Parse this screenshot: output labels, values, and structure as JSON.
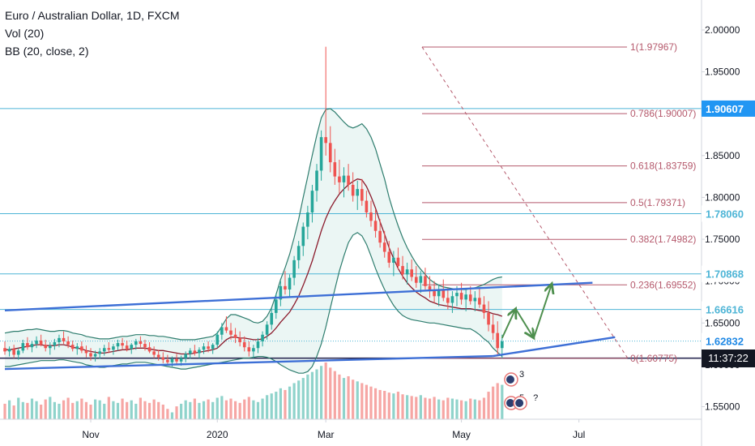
{
  "legend": {
    "symbol": "Euro / Australian Dollar, 1D, FXCM",
    "volume": "Vol (20)",
    "bands": "BB (20, close, 2)"
  },
  "clock": "11:37:22",
  "colors": {
    "up": "#26a69a",
    "down": "#ef5350",
    "band": "#2e7d6e",
    "basis": "#8b1a2b",
    "fib": "#b5596c",
    "hline": "#4eb5d6",
    "trend": "#3d6fd6",
    "arrow": "#4e8f4e",
    "price_tag": "#2196f3",
    "current_tag": "#1e88e5"
  },
  "chart_data": {
    "type": "candlestick",
    "symbol": "Euro / Australian Dollar",
    "interval": "1D",
    "source": "FXCM",
    "indicators": [
      "Vol (20)",
      "BB (20, close, 2)"
    ],
    "x_tick_labels": [
      "Nov",
      "2020",
      "Mar",
      "May",
      "Jul"
    ],
    "y_tick_labels": [
      "2.00000",
      "1.95000",
      "1.90000",
      "1.85000",
      "1.80000",
      "1.75000",
      "1.70000",
      "1.65000",
      "1.60000",
      "1.55000"
    ],
    "y_ticks": [
      2.0,
      1.95,
      1.9,
      1.85,
      1.8,
      1.75,
      1.7,
      1.65,
      1.6,
      1.55
    ],
    "ylim": [
      1.535,
      2.03
    ],
    "candles": [
      [
        1.62,
        1.628,
        1.612,
        1.616
      ],
      [
        1.616,
        1.622,
        1.61,
        1.619
      ],
      [
        1.619,
        1.624,
        1.608,
        1.612
      ],
      [
        1.612,
        1.62,
        1.606,
        1.617
      ],
      [
        1.617,
        1.63,
        1.614,
        1.626
      ],
      [
        1.626,
        1.633,
        1.618,
        1.621
      ],
      [
        1.621,
        1.628,
        1.615,
        1.625
      ],
      [
        1.625,
        1.634,
        1.62,
        1.629
      ],
      [
        1.629,
        1.636,
        1.622,
        1.624
      ],
      [
        1.624,
        1.63,
        1.616,
        1.62
      ],
      [
        1.62,
        1.627,
        1.612,
        1.623
      ],
      [
        1.623,
        1.631,
        1.618,
        1.627
      ],
      [
        1.627,
        1.636,
        1.621,
        1.632
      ],
      [
        1.632,
        1.64,
        1.625,
        1.628
      ],
      [
        1.628,
        1.634,
        1.62,
        1.624
      ],
      [
        1.624,
        1.629,
        1.616,
        1.619
      ],
      [
        1.619,
        1.626,
        1.612,
        1.622
      ],
      [
        1.622,
        1.628,
        1.614,
        1.617
      ],
      [
        1.617,
        1.623,
        1.609,
        1.614
      ],
      [
        1.614,
        1.62,
        1.605,
        1.61
      ],
      [
        1.61,
        1.617,
        1.604,
        1.613
      ],
      [
        1.613,
        1.62,
        1.607,
        1.616
      ],
      [
        1.616,
        1.624,
        1.611,
        1.62
      ],
      [
        1.62,
        1.627,
        1.614,
        1.618
      ],
      [
        1.618,
        1.625,
        1.612,
        1.622
      ],
      [
        1.622,
        1.63,
        1.617,
        1.626
      ],
      [
        1.626,
        1.632,
        1.619,
        1.623
      ],
      [
        1.623,
        1.629,
        1.616,
        1.619
      ],
      [
        1.619,
        1.626,
        1.613,
        1.624
      ],
      [
        1.624,
        1.631,
        1.618,
        1.628
      ],
      [
        1.628,
        1.634,
        1.621,
        1.625
      ],
      [
        1.625,
        1.63,
        1.617,
        1.621
      ],
      [
        1.621,
        1.627,
        1.614,
        1.616
      ],
      [
        1.616,
        1.622,
        1.608,
        1.612
      ],
      [
        1.612,
        1.618,
        1.605,
        1.609
      ],
      [
        1.609,
        1.615,
        1.602,
        1.606
      ],
      [
        1.606,
        1.612,
        1.6,
        1.603
      ],
      [
        1.603,
        1.61,
        1.598,
        1.607
      ],
      [
        1.607,
        1.613,
        1.601,
        1.604
      ],
      [
        1.604,
        1.611,
        1.599,
        1.608
      ],
      [
        1.608,
        1.616,
        1.603,
        1.613
      ],
      [
        1.613,
        1.62,
        1.607,
        1.617
      ],
      [
        1.617,
        1.624,
        1.611,
        1.614
      ],
      [
        1.614,
        1.621,
        1.608,
        1.618
      ],
      [
        1.618,
        1.626,
        1.613,
        1.622
      ],
      [
        1.622,
        1.628,
        1.615,
        1.619
      ],
      [
        1.619,
        1.626,
        1.613,
        1.624
      ],
      [
        1.624,
        1.64,
        1.62,
        1.636
      ],
      [
        1.636,
        1.65,
        1.63,
        1.645
      ],
      [
        1.645,
        1.658,
        1.638,
        1.641
      ],
      [
        1.641,
        1.65,
        1.63,
        1.636
      ],
      [
        1.636,
        1.644,
        1.626,
        1.632
      ],
      [
        1.632,
        1.64,
        1.622,
        1.627
      ],
      [
        1.627,
        1.634,
        1.616,
        1.621
      ],
      [
        1.621,
        1.628,
        1.61,
        1.616
      ],
      [
        1.616,
        1.624,
        1.608,
        1.62
      ],
      [
        1.62,
        1.632,
        1.614,
        1.628
      ],
      [
        1.628,
        1.64,
        1.622,
        1.636
      ],
      [
        1.636,
        1.652,
        1.63,
        1.648
      ],
      [
        1.648,
        1.668,
        1.642,
        1.662
      ],
      [
        1.662,
        1.685,
        1.655,
        1.678
      ],
      [
        1.678,
        1.7,
        1.67,
        1.694
      ],
      [
        1.694,
        1.712,
        1.684,
        1.69
      ],
      [
        1.69,
        1.708,
        1.68,
        1.704
      ],
      [
        1.704,
        1.73,
        1.695,
        1.725
      ],
      [
        1.725,
        1.748,
        1.715,
        1.742
      ],
      [
        1.742,
        1.77,
        1.73,
        1.765
      ],
      [
        1.765,
        1.79,
        1.75,
        1.782
      ],
      [
        1.782,
        1.815,
        1.77,
        1.808
      ],
      [
        1.808,
        1.84,
        1.795,
        1.832
      ],
      [
        1.832,
        1.88,
        1.82,
        1.872
      ],
      [
        1.872,
        1.98,
        1.85,
        1.865
      ],
      [
        1.865,
        1.885,
        1.83,
        1.842
      ],
      [
        1.842,
        1.858,
        1.815,
        1.825
      ],
      [
        1.825,
        1.845,
        1.805,
        1.818
      ],
      [
        1.818,
        1.836,
        1.8,
        1.826
      ],
      [
        1.826,
        1.84,
        1.808,
        1.815
      ],
      [
        1.815,
        1.83,
        1.795,
        1.802
      ],
      [
        1.802,
        1.82,
        1.785,
        1.81
      ],
      [
        1.81,
        1.822,
        1.79,
        1.796
      ],
      [
        1.796,
        1.808,
        1.776,
        1.782
      ],
      [
        1.782,
        1.796,
        1.765,
        1.772
      ],
      [
        1.772,
        1.786,
        1.752,
        1.76
      ],
      [
        1.76,
        1.774,
        1.74,
        1.746
      ],
      [
        1.746,
        1.76,
        1.728,
        1.735
      ],
      [
        1.735,
        1.748,
        1.716,
        1.722
      ],
      [
        1.722,
        1.736,
        1.706,
        1.728
      ],
      [
        1.728,
        1.74,
        1.714,
        1.718
      ],
      [
        1.718,
        1.73,
        1.702,
        1.708
      ],
      [
        1.708,
        1.722,
        1.696,
        1.714
      ],
      [
        1.714,
        1.726,
        1.7,
        1.705
      ],
      [
        1.705,
        1.718,
        1.692,
        1.698
      ],
      [
        1.698,
        1.712,
        1.686,
        1.706
      ],
      [
        1.706,
        1.716,
        1.69,
        1.694
      ],
      [
        1.694,
        1.706,
        1.68,
        1.688
      ],
      [
        1.688,
        1.7,
        1.674,
        1.682
      ],
      [
        1.682,
        1.696,
        1.67,
        1.69
      ],
      [
        1.69,
        1.702,
        1.676,
        1.68
      ],
      [
        1.68,
        1.692,
        1.666,
        1.674
      ],
      [
        1.674,
        1.688,
        1.662,
        1.682
      ],
      [
        1.682,
        1.694,
        1.67,
        1.686
      ],
      [
        1.686,
        1.698,
        1.672,
        1.678
      ],
      [
        1.678,
        1.69,
        1.664,
        1.684
      ],
      [
        1.684,
        1.694,
        1.672,
        1.676
      ],
      [
        1.676,
        1.688,
        1.664,
        1.68
      ],
      [
        1.68,
        1.692,
        1.668,
        1.672
      ],
      [
        1.672,
        1.682,
        1.655,
        1.662
      ],
      [
        1.662,
        1.676,
        1.64,
        1.648
      ],
      [
        1.648,
        1.66,
        1.63,
        1.638
      ],
      [
        1.638,
        1.652,
        1.612,
        1.62
      ],
      [
        1.62,
        1.636,
        1.608,
        1.628
      ]
    ],
    "bb_upper": [
      1.638,
      1.639,
      1.64,
      1.64,
      1.641,
      1.642,
      1.642,
      1.643,
      1.642,
      1.641,
      1.64,
      1.64,
      1.641,
      1.641,
      1.64,
      1.638,
      1.637,
      1.636,
      1.634,
      1.633,
      1.632,
      1.631,
      1.631,
      1.631,
      1.632,
      1.633,
      1.634,
      1.634,
      1.635,
      1.636,
      1.636,
      1.636,
      1.635,
      1.635,
      1.634,
      1.634,
      1.633,
      1.632,
      1.631,
      1.63,
      1.63,
      1.63,
      1.63,
      1.631,
      1.632,
      1.633,
      1.634,
      1.638,
      1.646,
      1.655,
      1.66,
      1.66,
      1.658,
      1.656,
      1.654,
      1.651,
      1.65,
      1.652,
      1.658,
      1.668,
      1.684,
      1.702,
      1.716,
      1.732,
      1.752,
      1.774,
      1.8,
      1.825,
      1.85,
      1.874,
      1.895,
      1.905,
      1.906,
      1.902,
      1.896,
      1.89,
      1.885,
      1.883,
      1.885,
      1.888,
      1.882,
      1.872,
      1.858,
      1.84,
      1.822,
      1.8,
      1.782,
      1.766,
      1.752,
      1.74,
      1.73,
      1.721,
      1.714,
      1.708,
      1.702,
      1.698,
      1.695,
      1.693,
      1.692,
      1.691,
      1.69,
      1.69,
      1.69,
      1.691,
      1.692,
      1.694,
      1.696,
      1.699,
      1.702,
      1.704,
      1.705
    ],
    "bb_lower": [
      1.598,
      1.598,
      1.599,
      1.6,
      1.601,
      1.602,
      1.603,
      1.604,
      1.605,
      1.605,
      1.605,
      1.605,
      1.606,
      1.606,
      1.605,
      1.604,
      1.603,
      1.602,
      1.6,
      1.599,
      1.598,
      1.597,
      1.597,
      1.598,
      1.599,
      1.6,
      1.601,
      1.601,
      1.602,
      1.603,
      1.603,
      1.603,
      1.602,
      1.601,
      1.6,
      1.599,
      1.598,
      1.597,
      1.596,
      1.595,
      1.595,
      1.596,
      1.597,
      1.598,
      1.599,
      1.6,
      1.601,
      1.602,
      1.603,
      1.604,
      1.605,
      1.606,
      1.607,
      1.608,
      1.608,
      1.609,
      1.61,
      1.61,
      1.609,
      1.607,
      1.604,
      1.6,
      1.597,
      1.594,
      1.592,
      1.59,
      1.59,
      1.592,
      1.598,
      1.61,
      1.625,
      1.645,
      1.668,
      1.69,
      1.712,
      1.73,
      1.746,
      1.755,
      1.758,
      1.754,
      1.744,
      1.73,
      1.715,
      1.702,
      1.69,
      1.68,
      1.671,
      1.664,
      1.659,
      1.656,
      1.654,
      1.653,
      1.652,
      1.651,
      1.65,
      1.65,
      1.649,
      1.648,
      1.647,
      1.646,
      1.645,
      1.644,
      1.643,
      1.643,
      1.64,
      1.636,
      1.631,
      1.627,
      1.62,
      1.615,
      1.61
    ],
    "bb_basis": [
      1.618,
      1.618,
      1.619,
      1.62,
      1.621,
      1.622,
      1.623,
      1.624,
      1.624,
      1.623,
      1.623,
      1.623,
      1.624,
      1.624,
      1.623,
      1.621,
      1.62,
      1.619,
      1.617,
      1.616,
      1.615,
      1.614,
      1.614,
      1.615,
      1.616,
      1.617,
      1.618,
      1.618,
      1.619,
      1.62,
      1.62,
      1.62,
      1.619,
      1.618,
      1.617,
      1.617,
      1.616,
      1.615,
      1.614,
      1.613,
      1.613,
      1.613,
      1.614,
      1.615,
      1.616,
      1.617,
      1.618,
      1.62,
      1.625,
      1.63,
      1.633,
      1.633,
      1.632,
      1.632,
      1.631,
      1.63,
      1.63,
      1.631,
      1.634,
      1.638,
      1.644,
      1.651,
      1.657,
      1.663,
      1.672,
      1.682,
      1.695,
      1.709,
      1.724,
      1.742,
      1.76,
      1.775,
      1.787,
      1.796,
      1.804,
      1.81,
      1.815,
      1.819,
      1.822,
      1.821,
      1.813,
      1.801,
      1.787,
      1.771,
      1.756,
      1.74,
      1.727,
      1.715,
      1.706,
      1.698,
      1.692,
      1.687,
      1.683,
      1.68,
      1.676,
      1.674,
      1.672,
      1.671,
      1.67,
      1.669,
      1.668,
      1.667,
      1.667,
      1.667,
      1.666,
      1.665,
      1.664,
      1.663,
      1.661,
      1.66,
      1.658
    ],
    "volume": [
      18,
      22,
      16,
      25,
      20,
      19,
      24,
      21,
      17,
      23,
      26,
      20,
      18,
      22,
      25,
      19,
      21,
      24,
      20,
      17,
      23,
      22,
      18,
      26,
      21,
      19,
      24,
      20,
      22,
      18,
      25,
      21,
      19,
      23,
      20,
      17,
      12,
      8,
      15,
      18,
      22,
      20,
      24,
      19,
      21,
      23,
      20,
      25,
      27,
      22,
      24,
      21,
      19,
      23,
      26,
      22,
      20,
      24,
      28,
      30,
      32,
      36,
      34,
      38,
      42,
      45,
      48,
      52,
      55,
      58,
      62,
      66,
      60,
      56,
      52,
      48,
      50,
      46,
      44,
      42,
      40,
      38,
      36,
      34,
      33,
      31,
      30,
      32,
      29,
      28,
      27,
      26,
      28,
      25,
      24,
      26,
      23,
      22,
      25,
      24,
      23,
      22,
      21,
      24,
      23,
      22,
      25,
      32,
      38,
      42,
      40
    ],
    "fibonacci": [
      {
        "label": "1(1.97967)",
        "level": 1.97967
      },
      {
        "label": "0.786(1.90007)",
        "level": 1.90007
      },
      {
        "label": "0.618(1.83759)",
        "level": 1.83759
      },
      {
        "label": "0.5(1.79371)",
        "level": 1.79371
      },
      {
        "label": "0.382(1.74982)",
        "level": 1.74982
      },
      {
        "label": "0.236(1.69552)",
        "level": 1.69552
      },
      {
        "label": "0(1.60775)",
        "level": 1.60775
      }
    ],
    "horizontal_levels": [
      {
        "label": "1.90607",
        "value": 1.90607
      },
      {
        "label": "1.78060",
        "value": 1.7806
      },
      {
        "label": "1.70868",
        "value": 1.70868
      },
      {
        "label": "1.66616",
        "value": 1.66616
      }
    ],
    "current_price": {
      "label": "1.62832",
      "value": 1.62832
    },
    "bid_level": {
      "label": "1.60795",
      "value": 1.60795
    },
    "trendlines": [
      {
        "name": "upper",
        "from": [
          0,
          1.665
        ],
        "to": [
          130,
          1.698
        ]
      },
      {
        "name": "middle",
        "from": [
          108,
          1.6105
        ],
        "to": [
          135,
          1.633
        ]
      },
      {
        "name": "lower",
        "from": [
          0,
          1.595
        ],
        "to": [
          108,
          1.6105
        ]
      }
    ],
    "projection_arrows": [
      [
        [
          110,
          1.632
        ],
        [
          113,
          1.667
        ]
      ],
      [
        [
          113,
          1.667
        ],
        [
          117,
          1.632
        ]
      ],
      [
        [
          117,
          1.632
        ],
        [
          121,
          1.697
        ]
      ]
    ],
    "event_markers": [
      {
        "label": "3",
        "index": 112
      },
      {
        "label": "5",
        "index": 112
      },
      {
        "label": "?",
        "index": 114
      }
    ]
  }
}
